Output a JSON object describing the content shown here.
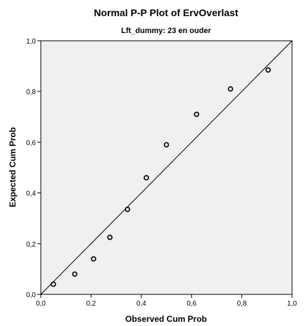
{
  "chart_data": {
    "type": "scatter",
    "title": "Normal P-P Plot of ErvOverlast",
    "subtitle": "Lft_dummy: 23 en ouder",
    "xlabel": "Observed Cum Prob",
    "ylabel": "Expected Cum Prob",
    "xlim": [
      0,
      1
    ],
    "ylim": [
      0,
      1
    ],
    "x_ticks": [
      "0,0",
      "0,2",
      "0,4",
      "0,6",
      "0,8",
      "1,0"
    ],
    "y_ticks": [
      "0,0",
      "0,2",
      "0,4",
      "0,6",
      "0,8",
      "1,0"
    ],
    "grid": false,
    "reference_line": [
      [
        0,
        0
      ],
      [
        1,
        1
      ]
    ],
    "series": [
      {
        "points": [
          {
            "x": 0.05,
            "y": 0.04
          },
          {
            "x": 0.135,
            "y": 0.08
          },
          {
            "x": 0.21,
            "y": 0.14
          },
          {
            "x": 0.275,
            "y": 0.225
          },
          {
            "x": 0.345,
            "y": 0.335
          },
          {
            "x": 0.42,
            "y": 0.46
          },
          {
            "x": 0.5,
            "y": 0.59
          },
          {
            "x": 0.62,
            "y": 0.71
          },
          {
            "x": 0.755,
            "y": 0.81
          },
          {
            "x": 0.905,
            "y": 0.885
          }
        ]
      }
    ],
    "colors": {
      "plot_background": "#f0f0f0",
      "frame": "#000000",
      "reference_line": "#000000",
      "marker_stroke": "#000000"
    }
  }
}
